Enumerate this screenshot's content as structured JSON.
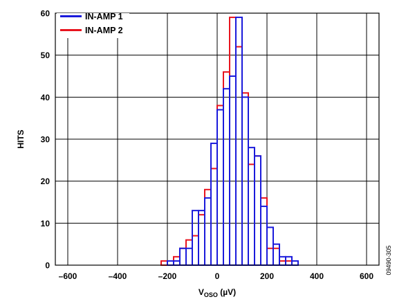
{
  "chart_data": {
    "type": "bar",
    "title": "",
    "xlabel_main": "V",
    "xlabel_sub": "OSO",
    "xlabel_unit": " (µV)",
    "ylabel": "HITS",
    "figure_id": "09490-305",
    "xlim": [
      -650,
      650
    ],
    "ylim": [
      0,
      60
    ],
    "xticks": [
      -600,
      -400,
      -200,
      0,
      200,
      400,
      600
    ],
    "xtick_labels": [
      "–600",
      "–400",
      "–200",
      "0",
      "200",
      "400",
      "600"
    ],
    "yticks": [
      0,
      10,
      20,
      30,
      40,
      50,
      60
    ],
    "ytick_labels": [
      "0",
      "10",
      "20",
      "30",
      "40",
      "50",
      "60"
    ],
    "grid": true,
    "legend_position": "top-left",
    "bin_width": 25,
    "series": [
      {
        "name": "IN-AMP 1",
        "color": "#1a1adb",
        "bin_starts": [
          -200,
          -175,
          -150,
          -125,
          -100,
          -75,
          -50,
          -25,
          0,
          25,
          50,
          75,
          100,
          125,
          150,
          175,
          200,
          225,
          250,
          275,
          300
        ],
        "values": [
          1,
          1,
          4,
          4,
          13,
          13,
          16,
          29,
          37,
          42,
          45,
          59,
          40,
          28,
          26,
          14,
          9,
          5,
          2,
          2,
          1
        ]
      },
      {
        "name": "IN-AMP 2",
        "color": "#e8141e",
        "bin_starts": [
          -225,
          -175,
          -150,
          -125,
          -100,
          -75,
          -50,
          -25,
          0,
          25,
          50,
          75,
          100,
          125,
          150,
          175,
          200,
          225,
          250,
          275,
          300
        ],
        "values": [
          1,
          2,
          4,
          6,
          7,
          12,
          18,
          23,
          38,
          46,
          59,
          52,
          41,
          24,
          26,
          16,
          4,
          4,
          1,
          1,
          0
        ]
      }
    ]
  }
}
